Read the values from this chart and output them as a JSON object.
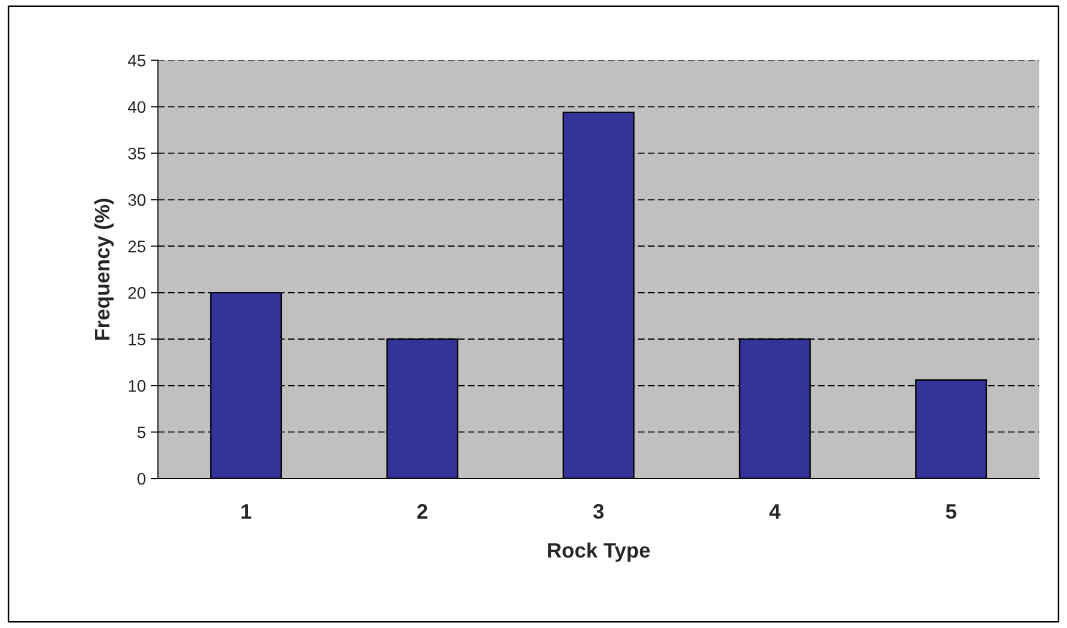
{
  "chart_data": {
    "type": "bar",
    "xlabel": "Rock Type",
    "ylabel": "Frequency (%)",
    "categories": [
      "1",
      "2",
      "3",
      "4",
      "5"
    ],
    "values": [
      20,
      15,
      39.4,
      15,
      10.6
    ],
    "color": "#333399",
    "ylim": [
      0,
      45
    ],
    "yticks": [
      0,
      5,
      10,
      15,
      20,
      25,
      30,
      35,
      40,
      45
    ],
    "grid": "y"
  }
}
